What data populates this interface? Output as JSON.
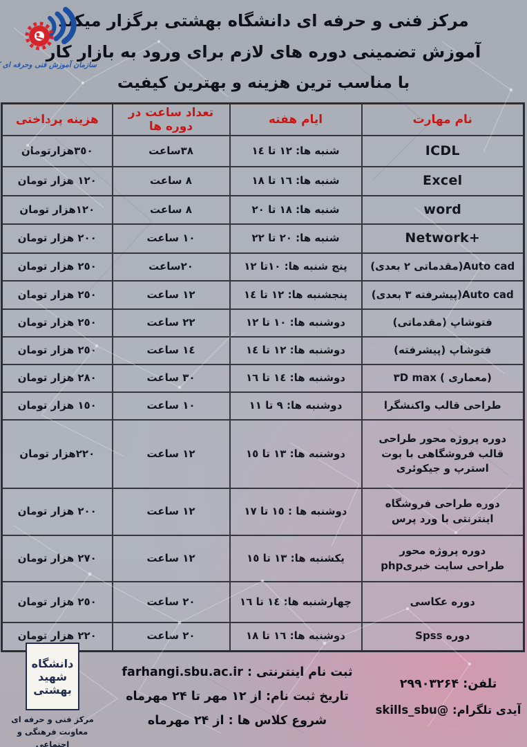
{
  "header": {
    "line1": "مرکز فنی و حرفه ای دانشگاه بهشتی برگزار میکند",
    "line2": "آموزش تضمینی دوره های لازم برای ورود به بازار کار",
    "line3": "با مناسب ترین هزینه و بهترین کیفیت",
    "logo_caption": "سازمان آموزش فنی وحرفه ای کشور"
  },
  "table": {
    "columns": [
      "نام مهارت",
      "ایام هفته",
      "تعداد ساعت در دوره ها",
      "هزینه پرداختی"
    ],
    "rows": [
      {
        "name": [
          {
            "t": "ICDL",
            "d": "ltr",
            "en": true
          }
        ],
        "days": "شنبه ها: ١٢ تا ١٤",
        "hours": "٣٨ساعت",
        "cost": "٣٥٠هزارتومان"
      },
      {
        "name": [
          {
            "t": "Excel",
            "d": "ltr",
            "en": true
          }
        ],
        "days": "شنبه ها: ١٦ تا ١٨",
        "hours": "٨ ساعت",
        "cost": "١٢٠ هزار تومان"
      },
      {
        "name": [
          {
            "t": "word",
            "d": "ltr",
            "en": true
          }
        ],
        "days": "شنبه ها: ١٨ تا ٢٠",
        "hours": "٨ ساعت",
        "cost": "١٢٠هزار تومان"
      },
      {
        "name": [
          {
            "t": "Network+",
            "d": "ltr",
            "en": true
          }
        ],
        "days": "شنبه ها: ٢٠ تا ٢٢",
        "hours": "١٠ ساعت",
        "cost": "٢٠٠ هزار تومان"
      },
      {
        "name": [
          {
            "t": "Auto cad(مقدماتی ٢ بعدی)",
            "d": "rtl"
          }
        ],
        "days": "پنج شنبه ها: ١٠تا ١٢",
        "hours": "٢٠ساعت",
        "cost": "٢٥٠ هزار تومان"
      },
      {
        "name": [
          {
            "t": "Auto cad(پیشرفته ٣ بعدی)",
            "d": "rtl"
          }
        ],
        "days": "پنجشنبه ها: ١٢ تا ١٤",
        "hours": "١٢ ساعت",
        "cost": "٢٥٠ هزار تومان"
      },
      {
        "name": [
          {
            "t": "فتوشاپ (مقدماتی)",
            "d": "rtl"
          }
        ],
        "days": "دوشنبه ها: ١٠ تا ١٢",
        "hours": "٢٢ ساعت",
        "cost": "٢٥٠ هزار تومان"
      },
      {
        "name": [
          {
            "t": "فتوشاپ (پیشرفته)",
            "d": "rtl"
          }
        ],
        "days": "دوشنبه ها: ١٢ تا ١٤",
        "hours": "١٤ ساعت",
        "cost": "٢٥٠ هزار تومان"
      },
      {
        "name": [
          {
            "t": "٣D max ( معماری)",
            "d": "ltr"
          }
        ],
        "days": "دوشنبه ها: ١٤ تا ١٦",
        "hours": "٣٠ ساعت",
        "cost": "٢٨٠ هزار تومان"
      },
      {
        "name": [
          {
            "t": "طراحی قالب واکنشگرا",
            "d": "rtl"
          }
        ],
        "days": "دوشنبه ها: ٩ تا ١١",
        "hours": "١٠ ساعت",
        "cost": "١٥٠ هزار تومان"
      },
      {
        "name": [
          {
            "t": "دوره پروژه محور طراحی قالب فروشگاهی با بوت استرپ و جیکوئری",
            "d": "rtl"
          }
        ],
        "days": "دوشنبه ها: ١٣ تا ١٥",
        "hours": "١٢ ساعت",
        "cost": "٢٢٠هزار تومان"
      },
      {
        "name": [
          {
            "t": "دوره طراحی فروشگاه اینترنتی با ورد پرس",
            "d": "rtl"
          }
        ],
        "days": "دوشنبه ها : ١٥ تا ١٧",
        "hours": "١٢ ساعت",
        "cost": "٢٠٠ هزار تومان"
      },
      {
        "name": [
          {
            "t": "دوره پروژه محور",
            "d": "rtl"
          },
          {
            "t": "phpطراحی سایت خبری",
            "d": "ltr"
          }
        ],
        "days": "یکشنبه ها: ١٣ تا ١٥",
        "hours": "١٢ ساعت",
        "cost": "٢٧٠ هزار تومان"
      },
      {
        "name": [
          {
            "t": "دوره عکاسی",
            "d": "rtl"
          }
        ],
        "days": "چهارشنبه ها: ١٤ تا ١٦",
        "hours": "٢٠ ساعت",
        "cost": "٢٥٠ هزار تومان"
      },
      {
        "name": [
          {
            "t": "دوره Spss",
            "d": "rtl"
          }
        ],
        "days": "دوشنبه ها: ١٦ تا ١٨",
        "hours": "٢٠ ساعت",
        "cost": "٢٢٠ هزار تومان"
      }
    ]
  },
  "footer": {
    "phone": "تلفن: ۲۹۹۰۳۲۶۴",
    "telegram": "آیدی تلگرام: @skills_sbu",
    "reg_line": "ثبت نام اینترنتی : farhangi.sbu.ac.ir",
    "dates_line": "تاریخ ثبت نام: از ۱۲ مهر تا ۲۴ مهرماه",
    "start_line": "شروع کلاس ها : از ۲۴ مهرماه",
    "uni_words": [
      "دانشگاه",
      "شهید",
      "بهشتی"
    ],
    "captions": [
      "مرکز فنی و حرفه ای",
      "معاونت فرهنگی و اجتماعی"
    ]
  },
  "colors": {
    "header_text_red": "#cb1616",
    "logo_blue": "#1c4fa1",
    "gear_red": "#d7242b",
    "navy": "#232c4e",
    "background_gray": "#a9aeb6",
    "background_pink": "#c9afb9"
  }
}
